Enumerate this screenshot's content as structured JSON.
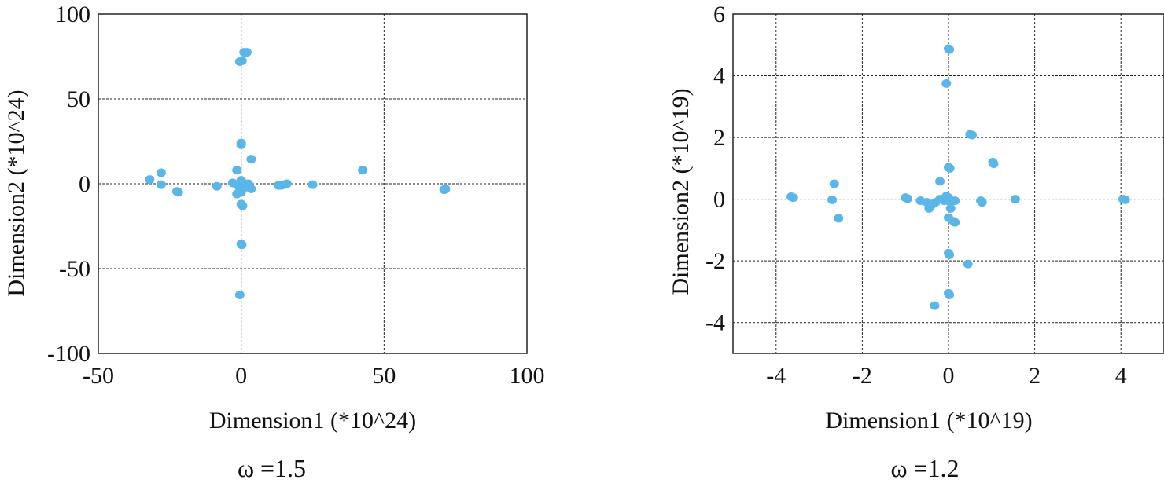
{
  "chart_data": [
    {
      "type": "scatter",
      "xlabel": "Dimension1 (*10^24)",
      "ylabel": "Dimension2 (*10^24)",
      "caption": "ω =1.5",
      "xlim": [
        -50,
        100
      ],
      "ylim": [
        -100,
        100
      ],
      "xticks": [
        -50,
        0,
        50,
        100
      ],
      "yticks": [
        -100,
        -50,
        0,
        50,
        100
      ],
      "grid": true,
      "color": "#5bb6e8",
      "points": [
        [
          1.0,
          77.5
        ],
        [
          2.0,
          77.5
        ],
        [
          -0.5,
          72.0
        ],
        [
          0.3,
          72.5
        ],
        [
          0,
          24.0
        ],
        [
          0,
          23.0
        ],
        [
          3.5,
          14.5
        ],
        [
          -1.5,
          8.0
        ],
        [
          42.5,
          8.0
        ],
        [
          -32,
          2.5
        ],
        [
          -28,
          6.5
        ],
        [
          -28,
          -0.5
        ],
        [
          -22.5,
          -4.5
        ],
        [
          -22,
          -5.0
        ],
        [
          -8.5,
          -1.5
        ],
        [
          -3,
          0.5
        ],
        [
          -1.5,
          -0.5
        ],
        [
          0,
          2.0
        ],
        [
          0.5,
          -1.0
        ],
        [
          1.5,
          -2.0
        ],
        [
          2.5,
          0.0
        ],
        [
          3.5,
          -3.0
        ],
        [
          0.5,
          0.5
        ],
        [
          -0.5,
          -2.5
        ],
        [
          1.0,
          -0.5
        ],
        [
          2.0,
          -1.5
        ],
        [
          -1.5,
          -6.0
        ],
        [
          0,
          -5.0
        ],
        [
          0,
          -12.0
        ],
        [
          0.5,
          -13.0
        ],
        [
          13,
          -1.0
        ],
        [
          14,
          -1.0
        ],
        [
          15,
          -0.5
        ],
        [
          16,
          0.0
        ],
        [
          25,
          -0.5
        ],
        [
          71,
          -3.5
        ],
        [
          71.5,
          -3.0
        ],
        [
          0,
          -35.5
        ],
        [
          0.2,
          -36.0
        ],
        [
          -0.5,
          -65.5
        ]
      ]
    },
    {
      "type": "scatter",
      "xlabel": "Dimension1 (*10^19)",
      "ylabel": "Dimension2 (*10^19)",
      "caption": "ω =1.2",
      "xlim": [
        -5,
        5
      ],
      "ylim": [
        -5,
        6
      ],
      "xticks": [
        -4,
        -2,
        0,
        2,
        4
      ],
      "yticks": [
        -4,
        -2,
        0,
        2,
        4,
        6
      ],
      "grid": true,
      "color": "#5bb6e8",
      "points": [
        [
          0,
          4.88
        ],
        [
          0.02,
          4.85
        ],
        [
          -0.05,
          3.75
        ],
        [
          0.5,
          2.1
        ],
        [
          0.55,
          2.08
        ],
        [
          1.05,
          1.15
        ],
        [
          1.03,
          1.2
        ],
        [
          0,
          1.03
        ],
        [
          0.03,
          1.0
        ],
        [
          -0.2,
          0.58
        ],
        [
          -2.65,
          0.5
        ],
        [
          -3.65,
          0.08
        ],
        [
          -3.6,
          0.05
        ],
        [
          -1.0,
          0.05
        ],
        [
          -0.95,
          0.02
        ],
        [
          -2.7,
          -0.02
        ],
        [
          -0.65,
          -0.05
        ],
        [
          -0.5,
          -0.1
        ],
        [
          -0.4,
          -0.2
        ],
        [
          -0.3,
          -0.1
        ],
        [
          -0.2,
          0.0
        ],
        [
          -0.1,
          -0.05
        ],
        [
          0,
          0.05
        ],
        [
          0.05,
          -0.1
        ],
        [
          0.15,
          -0.05
        ],
        [
          0.05,
          -0.3
        ],
        [
          -0.05,
          0.1
        ],
        [
          -0.45,
          -0.3
        ],
        [
          0.75,
          -0.05
        ],
        [
          0.78,
          -0.1
        ],
        [
          1.55,
          0.0
        ],
        [
          4.05,
          0.0
        ],
        [
          4.1,
          -0.02
        ],
        [
          -2.55,
          -0.62
        ],
        [
          0,
          -0.6
        ],
        [
          0.12,
          -0.72
        ],
        [
          0.15,
          -0.75
        ],
        [
          0,
          -1.75
        ],
        [
          0.02,
          -1.8
        ],
        [
          0.45,
          -2.1
        ],
        [
          0,
          -3.05
        ],
        [
          0.02,
          -3.1
        ],
        [
          -0.32,
          -3.45
        ]
      ]
    }
  ]
}
